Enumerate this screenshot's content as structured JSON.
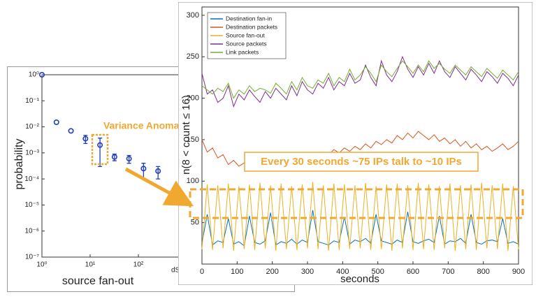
{
  "chart_data": [
    {
      "type": "scatter",
      "xlabel": "source fan-out",
      "ylabel": "probability",
      "annotation": "Variance Anomaly",
      "x_note": "dS",
      "x": [
        1,
        2,
        4,
        8,
        16,
        32,
        64,
        128,
        256
      ],
      "values": [
        1,
        0.015,
        0.007,
        0.0035,
        0.002,
        0.0007,
        0.0006,
        0.00025,
        0.0002
      ],
      "errors": [
        null,
        null,
        null,
        0.0012,
        0.0017,
        0.0002,
        0.0002,
        0.00015,
        0.0001
      ],
      "color": "#1f3fbf",
      "xscale": "log",
      "yscale": "log",
      "xlim": [
        1,
        1000
      ],
      "ylim": [
        1e-07,
        1
      ],
      "xticks": [
        {
          "value": 1,
          "label": "10⁰"
        },
        {
          "value": 10,
          "label": "10¹"
        },
        {
          "value": 100,
          "label": "10²"
        }
      ],
      "yticks": [
        {
          "value": 1,
          "label": "10⁰"
        },
        {
          "value": 0.1,
          "label": "10⁻¹"
        },
        {
          "value": 0.01,
          "label": "10⁻²"
        },
        {
          "value": 0.001,
          "label": "10⁻³"
        },
        {
          "value": 0.0001,
          "label": "10⁻⁴"
        },
        {
          "value": 1e-05,
          "label": "10⁻⁵"
        },
        {
          "value": 1e-06,
          "label": "10⁻⁶"
        },
        {
          "value": 1e-07,
          "label": "10⁻⁷"
        }
      ]
    },
    {
      "type": "line",
      "xlabel": "seconds",
      "ylabel": "n(8 < count ≤ 16)",
      "annotation": "Every 30 seconds ~75 IPs talk to ~10 IPs",
      "legend": "upper left",
      "xlim": [
        0,
        900
      ],
      "ylim": [
        0,
        310
      ],
      "xticks": [
        0,
        100,
        200,
        300,
        400,
        500,
        600,
        700,
        800,
        900
      ],
      "yticks": [
        50,
        100,
        150,
        200,
        250,
        300
      ],
      "x": [
        0,
        15,
        30,
        45,
        60,
        75,
        90,
        105,
        120,
        135,
        150,
        165,
        180,
        195,
        210,
        225,
        240,
        255,
        270,
        285,
        300,
        315,
        330,
        345,
        360,
        375,
        390,
        405,
        420,
        435,
        450,
        465,
        480,
        495,
        510,
        525,
        540,
        555,
        570,
        585,
        600,
        615,
        630,
        645,
        660,
        675,
        690,
        705,
        720,
        735,
        750,
        765,
        780,
        795,
        810,
        825,
        840,
        855,
        870,
        885,
        900
      ],
      "series": [
        {
          "name": "Destination fan-in",
          "color": "#0072bd",
          "values": [
            25,
            60,
            23,
            28,
            26,
            55,
            24,
            27,
            22,
            58,
            26,
            24,
            28,
            62,
            23,
            27,
            25,
            30,
            24,
            29,
            26,
            65,
            27,
            25,
            23,
            28,
            26,
            57,
            24,
            29,
            27,
            31,
            25,
            60,
            28,
            26,
            24,
            29,
            26,
            63,
            27,
            25,
            28,
            30,
            26,
            58,
            24,
            28,
            27,
            31,
            25,
            60,
            26,
            24,
            28,
            29,
            27,
            55,
            25,
            27,
            24
          ]
        },
        {
          "name": "Destination packets",
          "color": "#d95319",
          "values": [
            150,
            135,
            140,
            128,
            132,
            120,
            125,
            118,
            122,
            115,
            120,
            112,
            118,
            116,
            122,
            114,
            120,
            118,
            124,
            121,
            126,
            130,
            128,
            135,
            132,
            138,
            134,
            140,
            136,
            142,
            138,
            145,
            140,
            148,
            144,
            150,
            146,
            155,
            150,
            158,
            152,
            160,
            155,
            150,
            156,
            148,
            152,
            145,
            150,
            142,
            148,
            140,
            145,
            138,
            142,
            136,
            140,
            145,
            138,
            142,
            148
          ]
        },
        {
          "name": "Source fan-out",
          "color": "#edb120",
          "values": [
            18,
            96,
            17,
            95,
            19,
            97,
            16,
            94,
            18,
            96,
            17,
            98,
            19,
            95,
            16,
            97,
            18,
            94,
            17,
            96,
            19,
            99,
            18,
            95,
            16,
            97,
            17,
            96,
            18,
            95,
            19,
            98,
            17,
            94,
            18,
            96,
            16,
            97,
            19,
            95,
            17,
            98,
            18,
            96,
            17,
            94,
            19,
            97,
            16,
            95,
            18,
            96,
            17,
            98,
            19,
            95,
            18,
            97,
            16,
            94,
            18
          ]
        },
        {
          "name": "Source packets",
          "color": "#7e2f8e",
          "values": [
            230,
            205,
            210,
            195,
            200,
            215,
            190,
            205,
            198,
            210,
            202,
            195,
            208,
            200,
            212,
            205,
            198,
            215,
            203,
            220,
            210,
            205,
            218,
            212,
            225,
            210,
            220,
            215,
            230,
            218,
            222,
            240,
            225,
            215,
            245,
            228,
            220,
            232,
            250,
            235,
            225,
            238,
            228,
            242,
            230,
            245,
            232,
            225,
            238,
            230,
            222,
            235,
            228,
            220,
            232,
            226,
            218,
            230,
            224,
            215,
            228
          ]
        },
        {
          "name": "Link packets",
          "color": "#77ac30",
          "values": [
            215,
            210,
            205,
            212,
            208,
            218,
            200,
            210,
            205,
            215,
            208,
            212,
            210,
            206,
            218,
            212,
            205,
            220,
            210,
            225,
            215,
            212,
            222,
            218,
            230,
            215,
            225,
            220,
            235,
            222,
            228,
            238,
            230,
            220,
            240,
            232,
            226,
            236,
            245,
            238,
            230,
            240,
            232,
            245,
            236,
            242,
            235,
            230,
            240,
            234,
            228,
            238,
            232,
            226,
            236,
            230,
            224,
            234,
            228,
            222,
            232
          ]
        }
      ]
    }
  ]
}
